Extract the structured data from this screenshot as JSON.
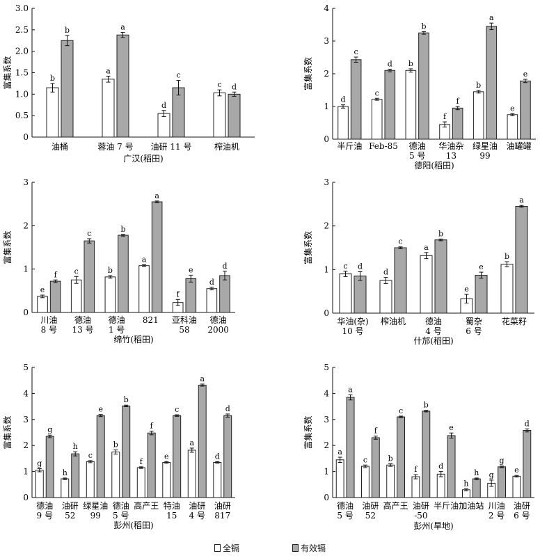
{
  "chart_data": [
    {
      "type": "bar",
      "region": "广汉(稻田)",
      "ylabel": "富集系数",
      "ylim": [
        0,
        3.0
      ],
      "yticks": [
        "0",
        "0.5",
        "1.0",
        "1.5",
        "2.0",
        "2.5",
        "3.0"
      ],
      "categories": [
        [
          "油桶"
        ],
        [
          "蓉油 7 号"
        ],
        [
          "油研 11 号"
        ],
        [
          "榨油机"
        ]
      ],
      "series": [
        {
          "name": "全镉",
          "values": [
            1.15,
            1.35,
            0.55,
            1.03
          ],
          "errors": [
            0.1,
            0.07,
            0.07,
            0.07
          ],
          "letters": [
            "b",
            "a",
            "d",
            "c"
          ]
        },
        {
          "name": "有效镉",
          "values": [
            2.25,
            2.38,
            1.15,
            1.0
          ],
          "errors": [
            0.12,
            0.06,
            0.17,
            0.05
          ],
          "letters": [
            "b",
            "a",
            "c",
            "d"
          ]
        }
      ]
    },
    {
      "type": "bar",
      "region": "德阳(稻田)",
      "ylabel": "富集系数",
      "ylim": [
        0,
        4
      ],
      "yticks": [
        "0",
        "1",
        "2",
        "3",
        "4"
      ],
      "categories": [
        [
          "半斤油"
        ],
        [
          "Feb-85"
        ],
        [
          "德油",
          "5 号"
        ],
        [
          "华油杂",
          "13"
        ],
        [
          "绿星油",
          "99"
        ],
        [
          "油罐罐"
        ]
      ],
      "series": [
        {
          "name": "全镉",
          "values": [
            1.0,
            1.22,
            2.1,
            0.45,
            1.45,
            0.75
          ],
          "errors": [
            0.05,
            0.03,
            0.05,
            0.08,
            0.04,
            0.03
          ],
          "letters": [
            "d",
            "c",
            "b",
            "f",
            "b",
            "e"
          ]
        },
        {
          "name": "有效镉",
          "values": [
            2.43,
            2.1,
            3.25,
            0.95,
            3.45,
            1.78
          ],
          "errors": [
            0.08,
            0.04,
            0.04,
            0.05,
            0.1,
            0.05
          ],
          "letters": [
            "c",
            "d",
            "b",
            "f",
            "a",
            "e"
          ]
        }
      ]
    },
    {
      "type": "bar",
      "region": "绵竹(稻田)",
      "ylabel": "富集系数",
      "ylim": [
        0,
        3
      ],
      "yticks": [
        "0",
        "1",
        "2",
        "3"
      ],
      "categories": [
        [
          "川油",
          "8 号"
        ],
        [
          "德油",
          "13 号"
        ],
        [
          "德油",
          "1 号"
        ],
        [
          "821"
        ],
        [
          "亚科油",
          "58"
        ],
        [
          "德油",
          "2000"
        ]
      ],
      "series": [
        {
          "name": "全镉",
          "values": [
            0.37,
            0.75,
            0.82,
            1.08,
            0.23,
            0.55
          ],
          "errors": [
            0.03,
            0.08,
            0.03,
            0.02,
            0.07,
            0.03
          ],
          "letters": [
            "e",
            "c",
            "b",
            "a",
            "f",
            "d"
          ]
        },
        {
          "name": "有效镉",
          "values": [
            0.72,
            1.65,
            1.78,
            2.55,
            0.78,
            0.85
          ],
          "errors": [
            0.03,
            0.05,
            0.02,
            0.02,
            0.08,
            0.1
          ],
          "letters": [
            "f",
            "c",
            "b",
            "a",
            "e",
            "d"
          ]
        }
      ]
    },
    {
      "type": "bar",
      "region": "什邡(稻田)",
      "ylabel": "富集系数",
      "ylim": [
        0,
        3
      ],
      "yticks": [
        "0",
        "1",
        "2",
        "3"
      ],
      "categories": [
        [
          "华油(杂)",
          "10 号"
        ],
        [
          "榨油机"
        ],
        [
          "德油",
          "4 号"
        ],
        [
          "蜀杂",
          "6 号"
        ],
        [
          "花菜籽"
        ]
      ],
      "series": [
        {
          "name": "全镉",
          "values": [
            0.9,
            0.75,
            1.32,
            0.33,
            1.12
          ],
          "errors": [
            0.06,
            0.07,
            0.07,
            0.1,
            0.06
          ],
          "letters": [
            "c",
            "d",
            "a",
            "e",
            "b"
          ]
        },
        {
          "name": "有效镉",
          "values": [
            0.85,
            1.5,
            1.68,
            0.87,
            2.45
          ],
          "errors": [
            0.1,
            0.02,
            0.02,
            0.07,
            0.02
          ],
          "letters": [
            "d",
            "c",
            "b",
            "e",
            "a"
          ]
        }
      ]
    },
    {
      "type": "bar",
      "region": "彭州(稻田)",
      "ylabel": "富集系数",
      "ylim": [
        0,
        5
      ],
      "yticks": [
        "0",
        "1",
        "2",
        "3",
        "4",
        "5"
      ],
      "categories": [
        [
          "德油",
          "9 号"
        ],
        [
          "油研",
          "52"
        ],
        [
          "绿星油",
          "99"
        ],
        [
          "德油",
          "5 号"
        ],
        [
          "高产王"
        ],
        [
          "特油",
          "15"
        ],
        [
          "油研",
          "4 号"
        ],
        [
          "油研",
          "817"
        ]
      ],
      "series": [
        {
          "name": "全镉",
          "values": [
            1.05,
            0.72,
            1.38,
            1.75,
            1.15,
            1.35,
            1.82,
            1.35
          ],
          "errors": [
            0.06,
            0.03,
            0.04,
            0.08,
            0.03,
            0.03,
            0.08,
            0.03
          ],
          "letters": [
            "g",
            "h",
            "c",
            "b",
            "f",
            "e",
            "a",
            "d"
          ]
        },
        {
          "name": "有效镉",
          "values": [
            2.35,
            1.68,
            3.15,
            3.52,
            2.48,
            3.15,
            4.32,
            3.15
          ],
          "errors": [
            0.05,
            0.08,
            0.04,
            0.03,
            0.07,
            0.03,
            0.04,
            0.06
          ],
          "letters": [
            "g",
            "h",
            "e",
            "b",
            "f",
            "c",
            "a",
            "d"
          ]
        }
      ]
    },
    {
      "type": "bar",
      "region": "彭州(旱地)",
      "ylabel": "富集系数",
      "ylim": [
        0,
        5
      ],
      "yticks": [
        "0",
        "1",
        "2",
        "3",
        "4",
        "5"
      ],
      "categories": [
        [
          "德油",
          "5 号"
        ],
        [
          "油研",
          "52"
        ],
        [
          "高产王"
        ],
        [
          "油研",
          "-50"
        ],
        [
          "半斤油"
        ],
        [
          "加油站"
        ],
        [
          "川油",
          "2 号"
        ],
        [
          "油研",
          "6 号"
        ]
      ],
      "series": [
        {
          "name": "全镉",
          "values": [
            1.45,
            1.2,
            1.25,
            0.8,
            0.9,
            0.3,
            0.55,
            0.82
          ],
          "errors": [
            0.1,
            0.05,
            0.05,
            0.08,
            0.1,
            0.04,
            0.12,
            0.03
          ],
          "letters": [
            "a",
            "c",
            "b",
            "f",
            "d",
            "h",
            "g",
            "e"
          ]
        },
        {
          "name": "有效镉",
          "values": [
            3.85,
            2.3,
            3.1,
            3.32,
            2.38,
            0.72,
            1.18,
            2.58
          ],
          "errors": [
            0.1,
            0.06,
            0.03,
            0.03,
            0.1,
            0.03,
            0.03,
            0.06
          ],
          "letters": [
            "a",
            "f",
            "c",
            "b",
            "e",
            "h",
            "g",
            "d"
          ]
        }
      ]
    }
  ],
  "legend": {
    "items": [
      {
        "label": "全镉",
        "color": "#ffffff"
      },
      {
        "label": "有效镉",
        "color": "#a8a8a8"
      }
    ]
  }
}
